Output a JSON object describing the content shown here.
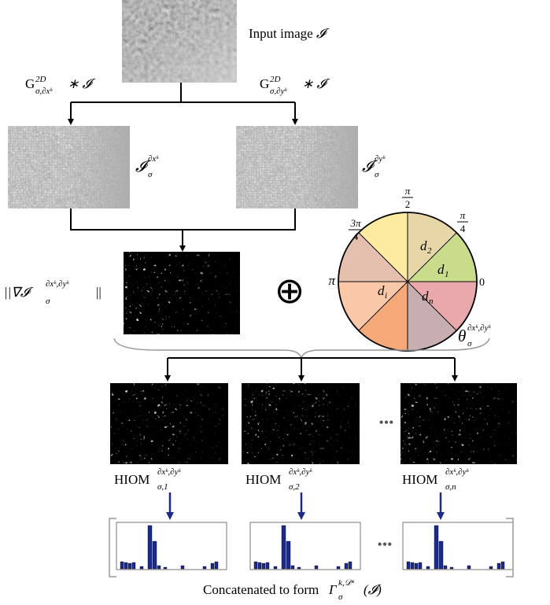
{
  "input_image": {
    "label": "Input image",
    "symbol": "𝓘"
  },
  "filter_x": {
    "base": "G",
    "sup": "2D",
    "sub": "σ,∂xᵏ",
    "rest": "∗ 𝓘"
  },
  "filter_y": {
    "base": "G",
    "sup": "2D",
    "sub": "σ,∂yᵏ",
    "rest": "∗ 𝓘"
  },
  "deriv_x": {
    "base": "𝓘",
    "sub": "σ",
    "sup": "∂xᵏ"
  },
  "deriv_y": {
    "base": "𝓘",
    "sub": "σ",
    "sup": "∂yᵏ"
  },
  "magnitude": {
    "open": "||∇𝓘",
    "sub": "σ",
    "sup": "∂xᵏ,∂yᵏ",
    "close": "||"
  },
  "combine": "⊕",
  "angles": {
    "half_pi": {
      "num": "π",
      "den": "2"
    },
    "quarter_pi": {
      "num": "π",
      "den": "4"
    },
    "three_quarter_pi": {
      "num": "3π",
      "den": "4"
    },
    "pi": "π",
    "zero": "0"
  },
  "bins": [
    {
      "base": "d",
      "sub": "2"
    },
    {
      "base": "d",
      "sub": "1"
    },
    {
      "base": "d",
      "sub": "i"
    },
    {
      "base": "d",
      "sub": "n"
    }
  ],
  "theta": {
    "base": "θ",
    "sub": "σ",
    "sup": "∂xᵏ,∂yᵏ"
  },
  "hiom_maps": [
    {
      "base": "HIOM",
      "sub": "σ,1",
      "sup": "∂xᵏ,∂yᵏ"
    },
    {
      "base": "HIOM",
      "sub": "σ,2",
      "sup": "∂xᵏ,∂yᵏ"
    },
    {
      "base": "HIOM",
      "sub": "σ,n",
      "sup": "∂xᵏ,∂yᵏ"
    }
  ],
  "ellipsis_maps": "•••",
  "ellipsis_hist": "•••",
  "caption": {
    "text": "Concatenated to form",
    "base": "Γ",
    "sub": "σ",
    "sup": "k,𝒟ⁿ",
    "arg": "(𝓘)"
  }
}
